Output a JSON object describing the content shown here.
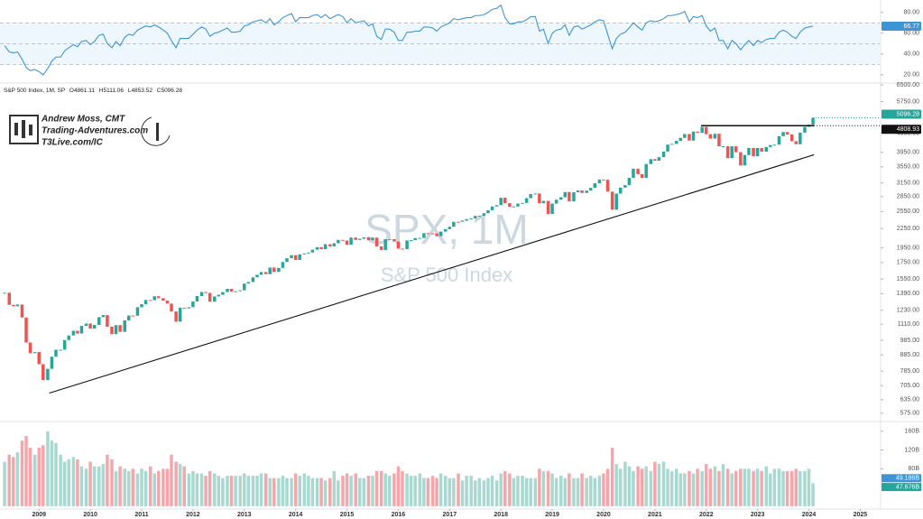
{
  "header": {
    "title": "S&P 500 Index, 1M, SP",
    "ohlc": [
      {
        "label": "O",
        "value": 4861.11
      },
      {
        "label": "H",
        "value": 5111.06
      },
      {
        "label": "L",
        "value": 4853.52
      },
      {
        "label": "C",
        "value": 5096.28
      }
    ]
  },
  "logo": {
    "name": "Andrew Moss, CMT",
    "site": "Trading-Adventures.com",
    "link": "T3Live.com/IC"
  },
  "watermark": {
    "symbol": "SPX, 1M",
    "name": "S&P 500 Index"
  },
  "chart_data": [
    {
      "type": "line",
      "color": "#3d95d6",
      "ylim": [
        12,
        92
      ],
      "yticks": [
        {
          "value": 80,
          "label": "80.00"
        },
        {
          "value": 60,
          "label": "60.00"
        },
        {
          "value": 40,
          "label": "40.00"
        },
        {
          "value": 20,
          "label": "20.00"
        }
      ],
      "levels": [
        30,
        50,
        70
      ],
      "series": [
        {
          "values": [
            48,
            42,
            41,
            42,
            35,
            27,
            24,
            25,
            23,
            20,
            26,
            33,
            37,
            37,
            43,
            46,
            49,
            47,
            52,
            53,
            49,
            52,
            58,
            59,
            50,
            46,
            52,
            48,
            56,
            59,
            58,
            63,
            65,
            67,
            66,
            68,
            66,
            63,
            60,
            53,
            46,
            55,
            55,
            55,
            59,
            63,
            66,
            64,
            57,
            60,
            61,
            63,
            65,
            61,
            61,
            62,
            67,
            68,
            71,
            72,
            73,
            70,
            74,
            68,
            71,
            75,
            77,
            79,
            71,
            75,
            75,
            75,
            77,
            78,
            75,
            78,
            74,
            76,
            78,
            76,
            70,
            74,
            70,
            71,
            72,
            67,
            69,
            57,
            54,
            64,
            64,
            61,
            53,
            53,
            61,
            61,
            62,
            62,
            66,
            66,
            65,
            62,
            66,
            68,
            70,
            74,
            73,
            74,
            75,
            75,
            77,
            77,
            78,
            80,
            83,
            84,
            87,
            75,
            69,
            69,
            71,
            71,
            73,
            76,
            76,
            62,
            64,
            50,
            60,
            63,
            64,
            68,
            58,
            66,
            67,
            64,
            66,
            68,
            71,
            73,
            72,
            59,
            45,
            55,
            59,
            61,
            65,
            70,
            66,
            63,
            70,
            72,
            71,
            72,
            74,
            77,
            77,
            78,
            79,
            81,
            71,
            76,
            75,
            77,
            67,
            62,
            65,
            53,
            53,
            45,
            53,
            50,
            44,
            49,
            53,
            48,
            53,
            51,
            54,
            55,
            55,
            61,
            63,
            61,
            57,
            55,
            61,
            65,
            66,
            66.77
          ]
        }
      ]
    },
    {
      "type": "candlestick",
      "log_scale": true,
      "up_color": "#26a69a",
      "down_color": "#ef5350",
      "xlim": [
        2008.24,
        2025.38
      ],
      "xticks": [
        2009,
        2010,
        2011,
        2012,
        2013,
        2014,
        2015,
        2016,
        2017,
        2018,
        2019,
        2020,
        2021,
        2022,
        2023,
        2024,
        2025
      ],
      "ylim": [
        548,
        6590
      ],
      "yticks": [
        {
          "value": 6500,
          "label": "6500.00"
        },
        {
          "value": 5750,
          "label": "5750.00"
        },
        {
          "value": 4550,
          "label": "4550.00"
        },
        {
          "value": 3950,
          "label": "3950.00"
        },
        {
          "value": 3550,
          "label": "3550.00"
        },
        {
          "value": 3150,
          "label": "3150.00"
        },
        {
          "value": 2850,
          "label": "2850.00"
        },
        {
          "value": 2550,
          "label": "2550.00"
        },
        {
          "value": 2250,
          "label": "2250.00"
        },
        {
          "value": 1950,
          "label": "1950.00"
        },
        {
          "value": 1750,
          "label": "1750.00"
        },
        {
          "value": 1550,
          "label": "1550.00"
        },
        {
          "value": 1390,
          "label": "1390.00"
        },
        {
          "value": 1230,
          "label": "1230.00"
        },
        {
          "value": 1110,
          "label": "1110.00"
        },
        {
          "value": 985,
          "label": "985.00"
        },
        {
          "value": 885,
          "label": "885.00"
        },
        {
          "value": 785,
          "label": "785.00"
        },
        {
          "value": 705,
          "label": "705.00"
        },
        {
          "value": 635,
          "label": "635.00"
        },
        {
          "value": 575,
          "label": "575.00"
        }
      ],
      "x": [
        2008.33,
        2008.42,
        2008.5,
        2008.58,
        2008.67,
        2008.75,
        2008.83,
        2008.92,
        2009.0,
        2009.08,
        2009.17,
        2009.25,
        2009.33,
        2009.42,
        2009.5,
        2009.58,
        2009.67,
        2009.75,
        2009.83,
        2009.92,
        2010.0,
        2010.08,
        2010.17,
        2010.25,
        2010.33,
        2010.42,
        2010.5,
        2010.58,
        2010.67,
        2010.75,
        2010.83,
        2010.92,
        2011.0,
        2011.08,
        2011.17,
        2011.25,
        2011.33,
        2011.42,
        2011.5,
        2011.58,
        2011.67,
        2011.75,
        2011.83,
        2011.92,
        2012.0,
        2012.08,
        2012.17,
        2012.25,
        2012.33,
        2012.42,
        2012.5,
        2012.58,
        2012.67,
        2012.75,
        2012.83,
        2012.92,
        2013.0,
        2013.08,
        2013.17,
        2013.25,
        2013.33,
        2013.42,
        2013.5,
        2013.58,
        2013.67,
        2013.75,
        2013.83,
        2013.92,
        2014.0,
        2014.08,
        2014.17,
        2014.25,
        2014.33,
        2014.42,
        2014.5,
        2014.58,
        2014.67,
        2014.75,
        2014.83,
        2014.92,
        2015.0,
        2015.08,
        2015.17,
        2015.25,
        2015.33,
        2015.42,
        2015.5,
        2015.58,
        2015.67,
        2015.75,
        2015.83,
        2015.92,
        2016.0,
        2016.08,
        2016.17,
        2016.25,
        2016.33,
        2016.42,
        2016.5,
        2016.58,
        2016.67,
        2016.75,
        2016.83,
        2016.92,
        2017.0,
        2017.08,
        2017.17,
        2017.25,
        2017.33,
        2017.42,
        2017.5,
        2017.58,
        2017.67,
        2017.75,
        2017.83,
        2017.92,
        2018.0,
        2018.08,
        2018.17,
        2018.25,
        2018.33,
        2018.42,
        2018.5,
        2018.58,
        2018.67,
        2018.75,
        2018.83,
        2018.92,
        2019.0,
        2019.08,
        2019.17,
        2019.25,
        2019.33,
        2019.42,
        2019.5,
        2019.58,
        2019.67,
        2019.75,
        2019.83,
        2019.92,
        2020.0,
        2020.08,
        2020.17,
        2020.25,
        2020.33,
        2020.42,
        2020.5,
        2020.58,
        2020.67,
        2020.75,
        2020.83,
        2020.92,
        2021.0,
        2021.08,
        2021.17,
        2021.25,
        2021.33,
        2021.42,
        2021.5,
        2021.58,
        2021.67,
        2021.75,
        2021.83,
        2021.92,
        2022.0,
        2022.08,
        2022.17,
        2022.25,
        2022.33,
        2022.42,
        2022.5,
        2022.58,
        2022.67,
        2022.75,
        2022.83,
        2022.92,
        2023.0,
        2023.08,
        2023.17,
        2023.25,
        2023.33,
        2023.42,
        2023.5,
        2023.58,
        2023.67,
        2023.75,
        2023.83,
        2023.92,
        2024.0,
        2024.08
      ],
      "series": [
        {
          "values": [
            1400,
            1280,
            1267,
            1283,
            1166,
            969,
            896,
            903,
            826,
            735,
            798,
            873,
            919,
            919,
            987,
            1021,
            1057,
            1036,
            1096,
            1115,
            1074,
            1104,
            1169,
            1187,
            1089,
            1031,
            1102,
            1049,
            1141,
            1183,
            1181,
            1258,
            1286,
            1327,
            1326,
            1364,
            1345,
            1321,
            1292,
            1219,
            1131,
            1253,
            1247,
            1258,
            1312,
            1366,
            1408,
            1398,
            1310,
            1362,
            1379,
            1407,
            1441,
            1412,
            1416,
            1426,
            1498,
            1515,
            1569,
            1598,
            1631,
            1606,
            1686,
            1633,
            1682,
            1757,
            1806,
            1848,
            1783,
            1859,
            1872,
            1884,
            1924,
            1960,
            1931,
            2003,
            1972,
            2018,
            2068,
            2059,
            1995,
            2105,
            2068,
            2086,
            2107,
            2063,
            2104,
            1972,
            1920,
            2079,
            2080,
            2044,
            1940,
            1932,
            2060,
            2065,
            2097,
            2099,
            2174,
            2171,
            2168,
            2126,
            2199,
            2239,
            2279,
            2364,
            2363,
            2384,
            2412,
            2423,
            2470,
            2472,
            2519,
            2575,
            2648,
            2674,
            2824,
            2714,
            2641,
            2648,
            2705,
            2718,
            2816,
            2902,
            2914,
            2712,
            2760,
            2507,
            2704,
            2784,
            2834,
            2946,
            2752,
            2942,
            2980,
            2926,
            2977,
            3038,
            3141,
            3231,
            3226,
            2954,
            2585,
            2912,
            3044,
            3100,
            3271,
            3500,
            3363,
            3270,
            3622,
            3756,
            3714,
            3811,
            3973,
            4181,
            4204,
            4298,
            4395,
            4523,
            4308,
            4605,
            4567,
            4766,
            4516,
            4374,
            4530,
            4132,
            4132,
            3785,
            4130,
            3955,
            3586,
            3872,
            4080,
            3840,
            4077,
            3970,
            4109,
            4169,
            4180,
            4450,
            4589,
            4508,
            4288,
            4194,
            4568,
            4770,
            4846,
            5096.28
          ]
        }
      ],
      "resistance": {
        "value": 4808.93,
        "x": [
          2021.9,
          2024.1
        ]
      },
      "trendline": {
        "x": [
          2009.2,
          2024.1
        ],
        "y": [
          667,
          3880
        ]
      }
    },
    {
      "type": "bar",
      "up_color": "#a8d8cf",
      "down_color": "#f5a6ab",
      "ylim": [
        -8,
        175
      ],
      "yticks": [
        {
          "value": 160,
          "label": "160B"
        },
        {
          "value": 120,
          "label": "120B"
        },
        {
          "value": 80,
          "label": "80B"
        }
      ],
      "last_value_label": "49.188B",
      "ma": {
        "value": 47.676,
        "label": "47.676B"
      },
      "series": [
        {
          "values": [
            95,
            110,
            105,
            115,
            140,
            150,
            125,
            110,
            125,
            130,
            160,
            140,
            135,
            110,
            95,
            100,
            105,
            100,
            85,
            80,
            95,
            85,
            85,
            90,
            110,
            100,
            75,
            85,
            80,
            75,
            80,
            70,
            80,
            75,
            85,
            70,
            75,
            80,
            80,
            110,
            95,
            90,
            85,
            70,
            75,
            70,
            70,
            65,
            75,
            70,
            65,
            60,
            65,
            65,
            65,
            65,
            70,
            65,
            65,
            65,
            70,
            70,
            60,
            60,
            60,
            65,
            60,
            60,
            70,
            65,
            70,
            65,
            60,
            60,
            60,
            55,
            60,
            75,
            55,
            65,
            70,
            65,
            70,
            60,
            60,
            65,
            65,
            75,
            75,
            70,
            65,
            70,
            85,
            75,
            70,
            65,
            65,
            70,
            60,
            60,
            65,
            60,
            70,
            65,
            60,
            60,
            70,
            55,
            65,
            65,
            55,
            60,
            55,
            60,
            65,
            55,
            70,
            75,
            70,
            60,
            65,
            65,
            60,
            60,
            60,
            80,
            75,
            75,
            70,
            60,
            65,
            60,
            70,
            60,
            60,
            70,
            60,
            65,
            60,
            65,
            70,
            80,
            125,
            90,
            80,
            95,
            85,
            75,
            85,
            80,
            85,
            75,
            95,
            90,
            95,
            80,
            75,
            80,
            70,
            70,
            75,
            70,
            80,
            75,
            90,
            80,
            85,
            75,
            90,
            80,
            70,
            75,
            80,
            80,
            80,
            75,
            80,
            75,
            85,
            70,
            80,
            80,
            75,
            75,
            75,
            80,
            75,
            75,
            80,
            49.188
          ]
        }
      ]
    }
  ]
}
